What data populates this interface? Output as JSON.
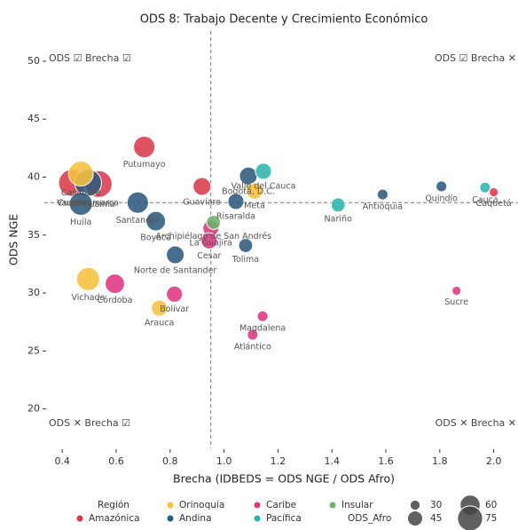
{
  "chart_data": {
    "type": "scatter",
    "title": "ODS 8: Trabajo Decente y Crecimiento Económico",
    "x_label": "Brecha (IDBEDS = ODS NGE / ODS Afro)",
    "y_label": "ODS NGE",
    "xlim": [
      0.35,
      2.09
    ],
    "ylim": [
      16.6,
      52.6
    ],
    "xticks": [
      0.4,
      0.6,
      0.8,
      {
        "value": 1,
        "label": "1.0"
      },
      1.2,
      1.4,
      1.6,
      1.8,
      {
        "value": 2,
        "label": "2.0"
      }
    ],
    "yticks": [
      20,
      25,
      30,
      35,
      40,
      45,
      50
    ],
    "ref_x": 0.951,
    "ref_y": 37.8,
    "quadrant_labels": {
      "top_left": "ODS ☑ Brecha ☑",
      "top_right": "ODS ☑ Brecha ✕",
      "bottom_left": "ODS ✕ Brecha ☑",
      "bottom_right": "ODS ✕ Brecha ✕"
    },
    "legend_title": "Región",
    "size_title": "ODS_Afro",
    "size_legend": [
      30,
      45,
      60,
      75
    ],
    "series": [
      {
        "name": "Amazónica",
        "color": "#d93a4c",
        "labels": [
          "Putumayo",
          "Caquetá",
          "Guaviare",
          "Vaupés",
          "Guainía"
        ],
        "x": [
          0.704,
          2.0,
          0.918,
          0.436,
          0.535
        ],
        "values": [
          42.6,
          38.7,
          39.2,
          39.5,
          39.4
        ],
        "sizes": [
          64,
          27,
          53,
          80,
          80
        ]
      },
      {
        "name": "Orinoquía",
        "color": "#f6c23c",
        "labels": [
          "Vichada",
          "Arauca",
          "Meta",
          "Casanare"
        ],
        "x": [
          0.496,
          0.76,
          1.113,
          0.469
        ],
        "values": [
          31.2,
          28.7,
          38.8,
          40.3
        ],
        "sizes": [
          69,
          48,
          48,
          74
        ]
      },
      {
        "name": "Andina",
        "color": "#2e5a7c",
        "labels": [
          "Quindío",
          "Antioquia",
          "Tolima",
          "Risaralda",
          "Bogotá, D.C.",
          "Norte de Santander",
          "Boyacá",
          "Santander",
          "Huila",
          "Cundinamarca"
        ],
        "x": [
          1.806,
          1.588,
          1.08,
          1.044,
          1.09,
          0.819,
          0.747,
          0.68,
          0.469,
          0.496
        ],
        "values": [
          39.2,
          38.5,
          34.1,
          37.9,
          40.1,
          33.3,
          36.2,
          37.8,
          37.7,
          39.5
        ],
        "sizes": [
          32,
          32,
          42,
          48,
          53,
          53,
          58,
          64,
          69,
          80
        ]
      },
      {
        "name": "Caribe",
        "color": "#e0377f",
        "labels": [
          "Córdoba",
          "Bolívar",
          "Sucre",
          "Magdalena",
          "Atlántico",
          "La Guajira",
          "Cesar"
        ],
        "x": [
          0.595,
          0.816,
          1.862,
          1.143,
          1.106,
          0.951,
          0.945
        ],
        "values": [
          30.8,
          29.9,
          30.2,
          28.0,
          26.4,
          35.6,
          34.5
        ],
        "sizes": [
          58,
          48,
          27,
          32,
          32,
          48,
          48
        ]
      },
      {
        "name": "Pacífica",
        "color": "#2bb5ad",
        "labels": [
          "Cauca",
          "Nariño",
          "Valle del Cauca"
        ],
        "x": [
          1.968,
          1.423,
          1.146
        ],
        "values": [
          39.1,
          37.6,
          40.5
        ],
        "sizes": [
          32,
          42,
          48
        ]
      },
      {
        "name": "Insular",
        "color": "#6db36a",
        "labels": [
          "Archipiélago de San Andrés"
        ],
        "x": [
          0.961
        ],
        "values": [
          36.1
        ],
        "sizes": [
          42
        ]
      }
    ]
  }
}
